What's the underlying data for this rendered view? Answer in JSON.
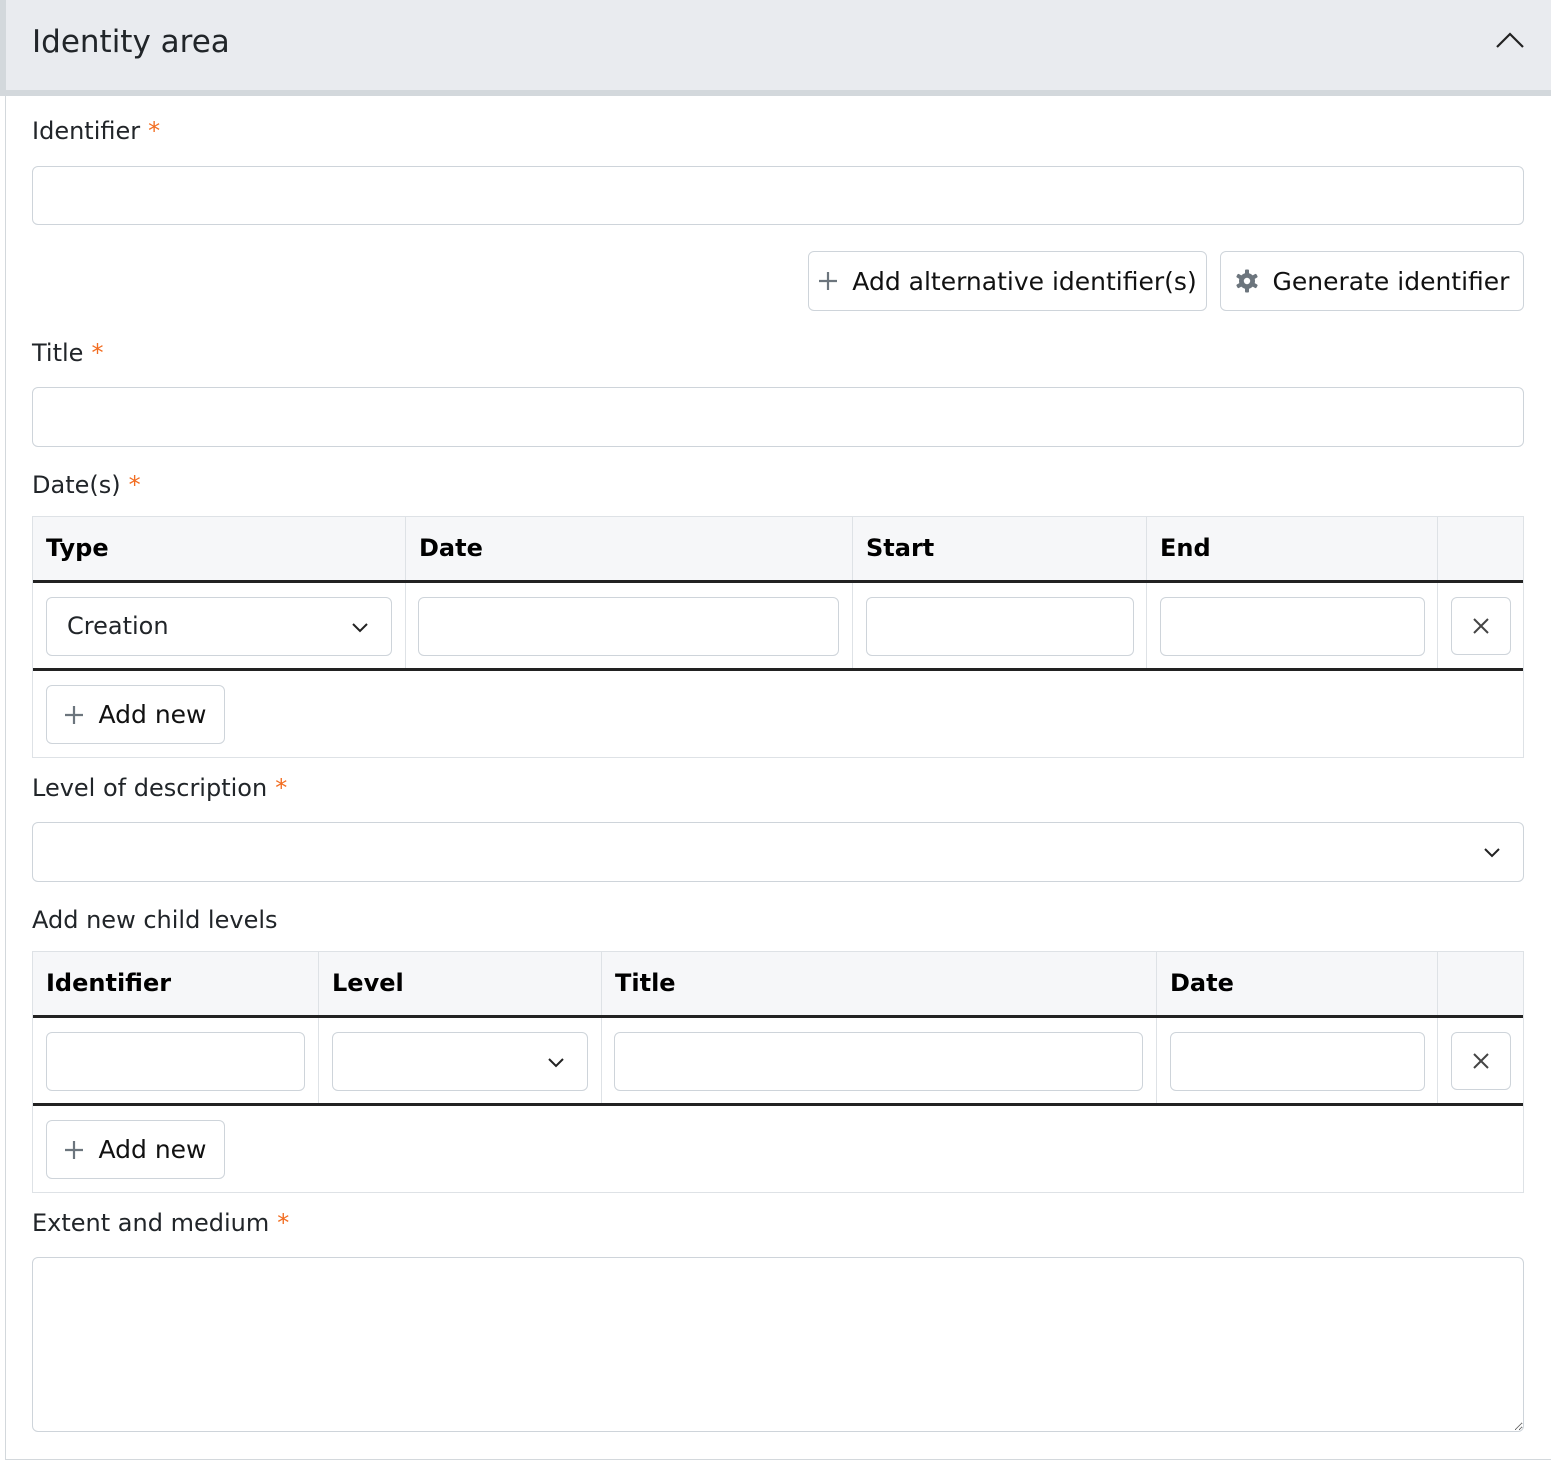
{
  "section": {
    "title": "Identity area",
    "collapse_icon": "chevron-up-icon"
  },
  "identifier": {
    "label": "Identifier",
    "required": "*",
    "value": ""
  },
  "buttons": {
    "add_alternative": "Add alternative identifier(s)",
    "generate": "Generate identifier"
  },
  "title": {
    "label": "Title",
    "required": "*",
    "value": ""
  },
  "dates": {
    "label": "Date(s)",
    "required": "*",
    "columns": [
      "Type",
      "Date",
      "Start",
      "End"
    ],
    "row": {
      "type": "Creation",
      "date": "",
      "start": "",
      "end": ""
    },
    "add_label": "Add new"
  },
  "level": {
    "label": "Level of description",
    "required": "*",
    "value": ""
  },
  "child_levels": {
    "label": "Add new child levels",
    "columns": [
      "Identifier",
      "Level",
      "Title",
      "Date"
    ],
    "row": {
      "identifier": "",
      "level": "",
      "title": "",
      "date": ""
    },
    "add_label": "Add new"
  },
  "extent": {
    "label": "Extent and medium",
    "required": "*",
    "value": ""
  },
  "colors": {
    "required": "#f26d21",
    "header_bg": "#e9ebef",
    "border": "#ced4da"
  }
}
